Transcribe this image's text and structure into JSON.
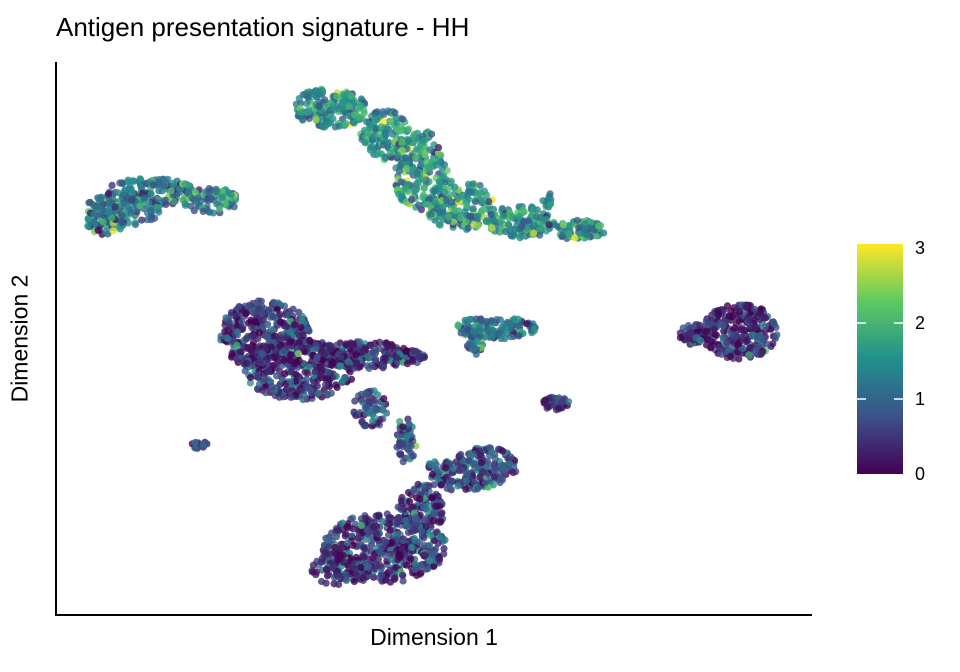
{
  "chart_data": {
    "type": "scatter",
    "title": "Antigen presentation signature - HH",
    "xlabel": "Dimension 1",
    "ylabel": "Dimension 2",
    "x_ticks_shown": false,
    "y_ticks_shown": false,
    "grid": false,
    "colorbar": {
      "colormap": "viridis",
      "range": [
        0,
        3
      ],
      "ticks": [
        "0",
        "1",
        "2",
        "3"
      ],
      "position": "right",
      "colors": [
        "#440154",
        "#3b528b",
        "#21908c",
        "#5dc963",
        "#fde725"
      ]
    },
    "clusters": [
      {
        "location": "top-left",
        "mean_score": 1.2
      },
      {
        "location": "top-center",
        "mean_score": 1.5
      },
      {
        "location": "center-left",
        "mean_score": 0.4
      },
      {
        "location": "center",
        "mean_score": 1.1
      },
      {
        "location": "right",
        "mean_score": 0.3
      },
      {
        "location": "center-small",
        "mean_score": 0.6
      },
      {
        "location": "left-tiny",
        "mean_score": 0.5
      },
      {
        "location": "bottom-center",
        "mean_score": 0.45
      },
      {
        "location": "bottom-right-lobe",
        "mean_score": 0.7
      }
    ]
  }
}
